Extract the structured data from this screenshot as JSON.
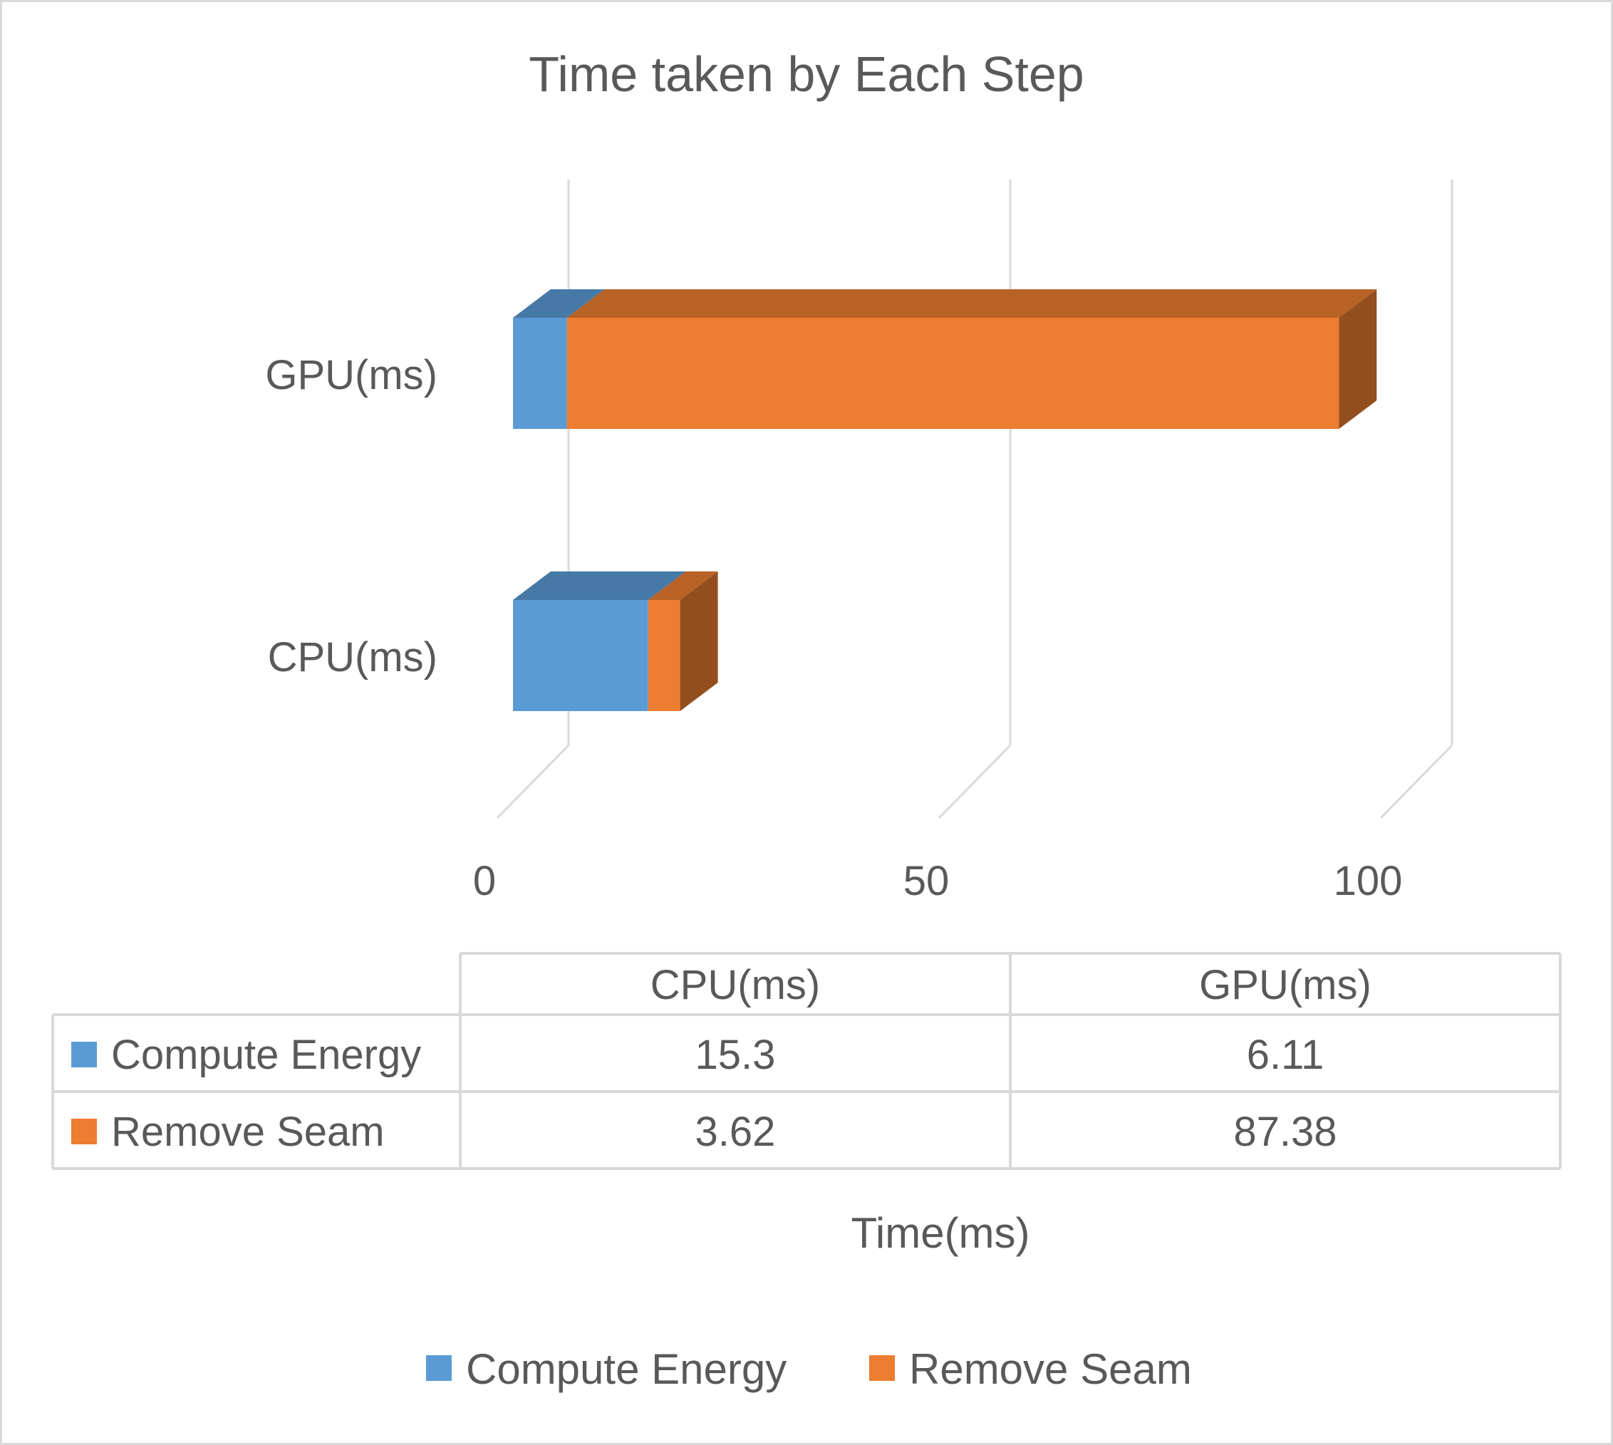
{
  "chart_data": {
    "type": "bar",
    "orientation": "horizontal",
    "stacked": true,
    "style_3d": true,
    "title": "Time taken by Each Step",
    "xlabel": "Time(ms)",
    "ylabel": "",
    "categories": [
      "CPU(ms)",
      "GPU(ms)"
    ],
    "category_order_top_to_bottom": [
      "GPU(ms)",
      "CPU(ms)"
    ],
    "series": [
      {
        "name": "Compute Energy",
        "values": [
          15.3,
          6.11
        ],
        "color": "#5b9bd5"
      },
      {
        "name": "Remove Seam",
        "values": [
          3.62,
          87.38
        ],
        "color": "#ed7d31"
      }
    ],
    "xlim": [
      0,
      100
    ],
    "x_ticks": [
      "0",
      "50",
      "100"
    ],
    "grid": true,
    "legend_position": "bottom",
    "data_table": {
      "header": [
        "CPU(ms)",
        "GPU(ms)"
      ],
      "rows": [
        {
          "label": "Compute Energy",
          "values": [
            "15.3",
            "6.11"
          ]
        },
        {
          "label": "Remove Seam",
          "values": [
            "3.62",
            "87.38"
          ]
        }
      ]
    }
  }
}
